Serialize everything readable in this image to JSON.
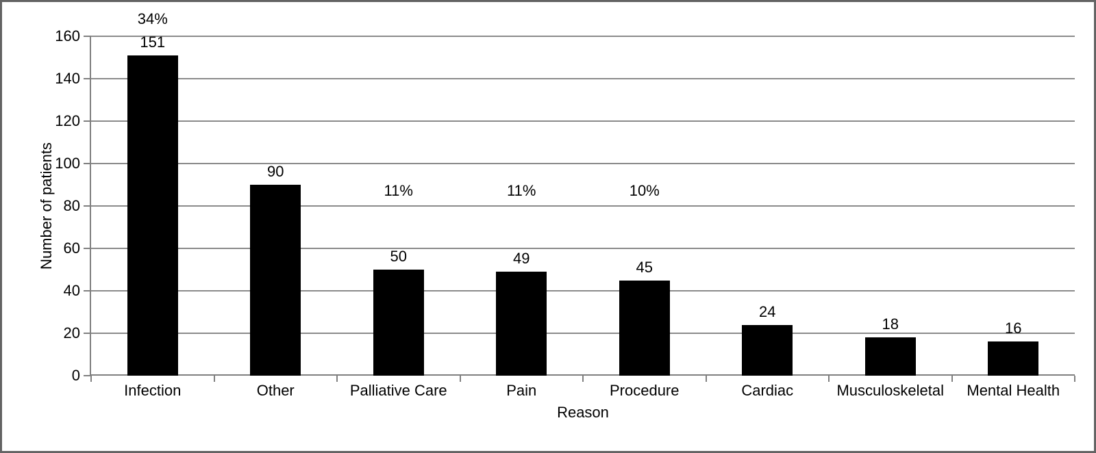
{
  "chart_data": {
    "type": "bar",
    "title": "",
    "xlabel": "Reason",
    "ylabel": "Number of patients",
    "categories": [
      "Infection",
      "Other",
      "Palliative Care",
      "Pain",
      "Procedure",
      "Cardiac",
      "Musculoskeletal",
      "Mental Health"
    ],
    "values": [
      151,
      90,
      50,
      49,
      45,
      24,
      18,
      16
    ],
    "bar_value_labels": [
      "151",
      "90",
      "50",
      "49",
      "45",
      "24",
      "18",
      "16"
    ],
    "percent_labels": [
      {
        "category": "Infection",
        "text": "34%",
        "y_axis_units": 168
      },
      {
        "category": "Palliative Care",
        "text": "11%",
        "y_axis_units": 87
      },
      {
        "category": "Pain",
        "text": "11%",
        "y_axis_units": 87
      },
      {
        "category": "Procedure",
        "text": "10%",
        "y_axis_units": 87
      }
    ],
    "ylim": [
      0,
      160
    ],
    "yticks": [
      0,
      20,
      40,
      60,
      80,
      100,
      120,
      140,
      160
    ],
    "grid": true,
    "legend": false,
    "colors": {
      "bar": "#000000",
      "gridline": "#8a8a8a",
      "axis": "#7f7f7f",
      "text": "#000000",
      "background": "#ffffff",
      "frame_border": "#636363"
    }
  }
}
